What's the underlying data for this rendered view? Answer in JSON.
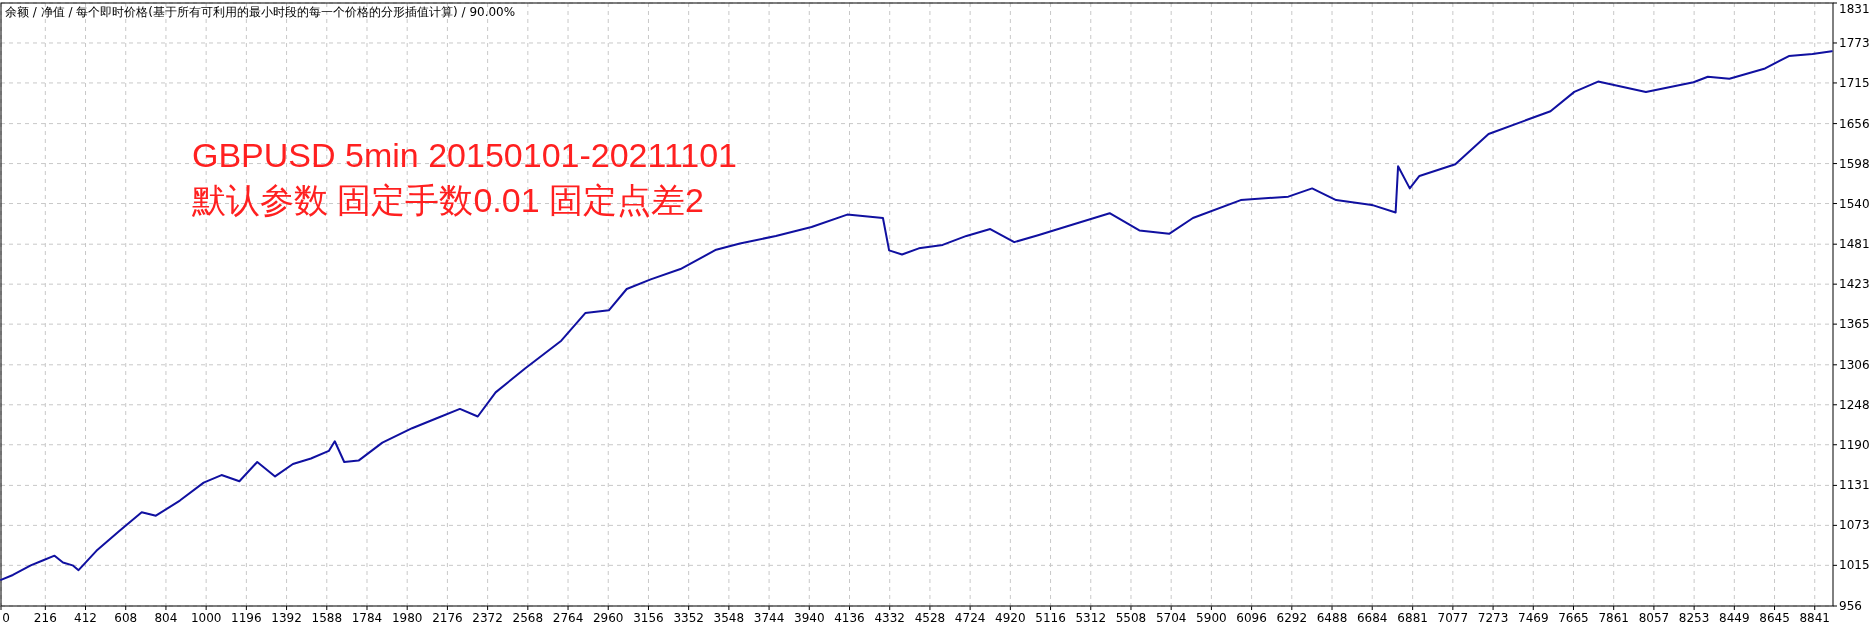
{
  "chart_data": {
    "type": "line",
    "title": "余额 / 净值 / 每个即时价格(基于所有可利用的最小时段的每一个价格的分形插值计算) / 90.00%",
    "annotations": [
      "GBPUSD 5min 20150101-20211101",
      "默认参数 固定手数0.01 固定点差2"
    ],
    "x": [
      0,
      58,
      145,
      203,
      261,
      302,
      349,
      378,
      465,
      581,
      686,
      755,
      872,
      988,
      1075,
      1162,
      1249,
      1336,
      1423,
      1511,
      1598,
      1627,
      1673,
      1743,
      1859,
      2004,
      2121,
      2237,
      2324,
      2411,
      2556,
      2731,
      2848,
      2963,
      3050,
      3167,
      3312,
      3486,
      3602,
      3777,
      3951,
      4125,
      4299,
      4329,
      4392,
      4474,
      4590,
      4706,
      4822,
      4939,
      5055,
      5229,
      5404,
      5549,
      5694,
      5810,
      6043,
      6275,
      6391,
      6508,
      6682,
      6798,
      6810,
      6867,
      6914,
      7089,
      7251,
      7553,
      7669,
      7785,
      8018,
      8250,
      8320,
      8425,
      8599,
      8715,
      8830,
      8924
    ],
    "series": [
      {
        "color": "#1010a0",
        "values": [
          994,
          1001,
          1015,
          1022,
          1029,
          1019,
          1015,
          1008,
          1036,
          1066,
          1092,
          1087,
          1109,
          1135,
          1146,
          1137,
          1165,
          1144,
          1162,
          1170,
          1181,
          1195,
          1165,
          1167,
          1193,
          1214,
          1228,
          1242,
          1231,
          1266,
          1301,
          1341,
          1381,
          1385,
          1416,
          1430,
          1445,
          1473,
          1482,
          1493,
          1506,
          1524,
          1519,
          1472,
          1466,
          1475,
          1480,
          1493,
          1503,
          1484,
          1494,
          1510,
          1526,
          1501,
          1496,
          1519,
          1545,
          1550,
          1562,
          1545,
          1538,
          1527,
          1594,
          1562,
          1580,
          1597,
          1641,
          1674,
          1702,
          1717,
          1702,
          1716,
          1724,
          1721,
          1736,
          1754,
          1757,
          1761
        ]
      }
    ],
    "xlim": [
      0,
      8930
    ],
    "ylim": [
      956,
      1831
    ],
    "xticks": [
      0,
      216,
      412,
      608,
      804,
      1000,
      1196,
      1392,
      1588,
      1784,
      1980,
      2176,
      2372,
      2568,
      2764,
      2960,
      3156,
      3352,
      3548,
      3744,
      3940,
      4136,
      4332,
      4528,
      4724,
      4920,
      5116,
      5312,
      5508,
      5704,
      5900,
      6096,
      6292,
      6488,
      6684,
      6881,
      7077,
      7273,
      7469,
      7665,
      7861,
      8057,
      8253,
      8449,
      8645,
      8841
    ],
    "yticks": [
      956,
      1015,
      1073,
      1131,
      1190,
      1248,
      1306,
      1365,
      1423,
      1481,
      1540,
      1598,
      1656,
      1715,
      1773,
      1831
    ],
    "grid": true,
    "line_style": "solid",
    "marker": "none"
  }
}
